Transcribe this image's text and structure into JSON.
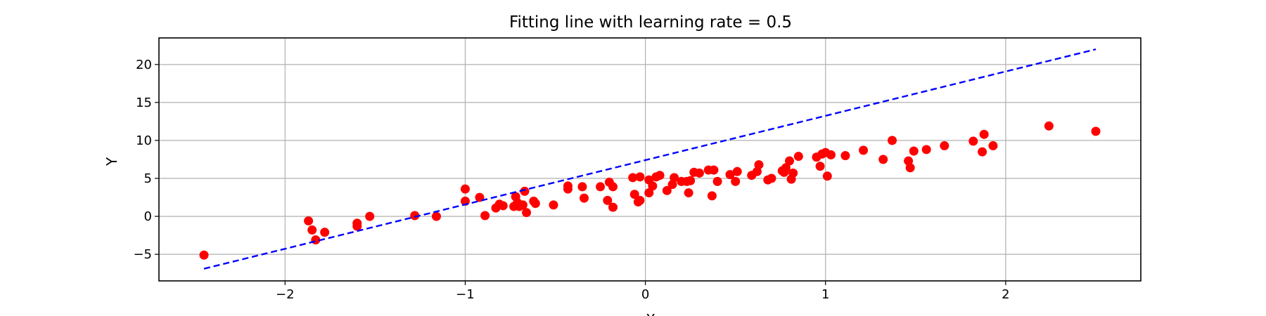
{
  "chart_data": {
    "type": "scatter",
    "title": "Fitting line with learning rate = 0.5",
    "xlabel": "X",
    "ylabel": "Y",
    "xlim": [
      -2.7,
      2.75
    ],
    "ylim": [
      -8.5,
      23.5
    ],
    "xticks": [
      -2,
      -1,
      0,
      1,
      2
    ],
    "yticks": [
      -5,
      0,
      5,
      10,
      15,
      20
    ],
    "xtick_labels": [
      "−2",
      "−1",
      "0",
      "1",
      "2"
    ],
    "ytick_labels": [
      "−5",
      "0",
      "5",
      "10",
      "15",
      "20"
    ],
    "grid": true,
    "legend": "none",
    "colors": {
      "points": "#ff0000",
      "fit_line": "#0000ff",
      "grid": "#b0b0b0",
      "axes": "#000000"
    },
    "series": [
      {
        "type": "scatter",
        "marker": "circle",
        "x": [
          -2.45,
          -1.87,
          -1.85,
          -1.83,
          -1.78,
          -1.6,
          -1.6,
          -1.53,
          -1.28,
          -1.16,
          -1.0,
          -1.0,
          -0.92,
          -0.89,
          -0.83,
          -0.81,
          -0.79,
          -0.73,
          -0.72,
          -0.71,
          -0.7,
          -0.68,
          -0.67,
          -0.66,
          -0.62,
          -0.61,
          -0.51,
          -0.43,
          -0.43,
          -0.35,
          -0.34,
          -0.25,
          -0.21,
          -0.2,
          -0.18,
          -0.18,
          -0.07,
          -0.06,
          -0.04,
          -0.03,
          -0.03,
          0.02,
          0.02,
          0.04,
          0.06,
          0.08,
          0.12,
          0.15,
          0.16,
          0.2,
          0.23,
          0.24,
          0.25,
          0.27,
          0.3,
          0.35,
          0.37,
          0.38,
          0.4,
          0.47,
          0.5,
          0.51,
          0.59,
          0.62,
          0.63,
          0.68,
          0.7,
          0.76,
          0.77,
          0.78,
          0.8,
          0.81,
          0.82,
          0.85,
          0.95,
          0.97,
          0.98,
          1.0,
          1.01,
          1.03,
          1.11,
          1.21,
          1.32,
          1.37,
          1.46,
          1.47,
          1.49,
          1.56,
          1.66,
          1.82,
          1.87,
          1.88,
          1.93,
          2.24,
          2.5
        ],
        "y": [
          -5.1,
          -0.6,
          -1.8,
          -3.1,
          -2.1,
          -1.3,
          -0.9,
          0.0,
          0.1,
          0.0,
          3.6,
          2.0,
          2.5,
          0.1,
          1.1,
          1.6,
          1.4,
          1.3,
          2.6,
          1.8,
          1.3,
          1.5,
          3.3,
          0.5,
          2.0,
          1.7,
          1.5,
          4.0,
          3.6,
          3.9,
          2.4,
          3.9,
          2.1,
          4.5,
          1.2,
          3.9,
          5.1,
          2.9,
          1.9,
          2.1,
          5.2,
          3.1,
          4.8,
          4.0,
          5.2,
          5.4,
          3.4,
          4.2,
          5.1,
          4.6,
          4.6,
          3.1,
          4.7,
          5.8,
          5.7,
          6.1,
          2.7,
          6.1,
          4.6,
          5.5,
          4.6,
          5.9,
          5.4,
          5.9,
          6.8,
          4.8,
          5.0,
          6.0,
          5.8,
          6.4,
          7.3,
          4.9,
          5.7,
          7.9,
          7.8,
          6.6,
          8.2,
          8.4,
          5.3,
          8.1,
          8.0,
          8.7,
          7.5,
          10.0,
          7.3,
          6.4,
          8.6,
          8.8,
          9.3,
          9.9,
          8.5,
          10.8,
          9.3,
          11.9,
          11.2
        ]
      },
      {
        "type": "line",
        "style": "dashed",
        "x": [
          -2.45,
          2.5
        ],
        "y": [
          -6.9,
          22.0
        ]
      }
    ]
  }
}
